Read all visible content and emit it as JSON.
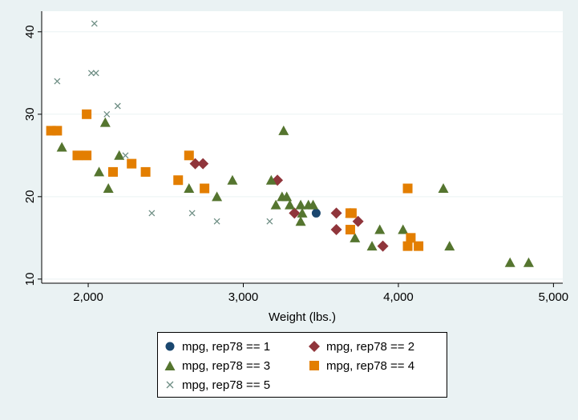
{
  "chart_data": {
    "type": "scatter",
    "title": "",
    "xlabel": "Weight (lbs.)",
    "ylabel": "",
    "xlim": [
      1700,
      5060
    ],
    "ylim": [
      9.5,
      42.5
    ],
    "xticks": [
      2000,
      3000,
      4000,
      5000
    ],
    "xtick_labels": [
      "2,000",
      "3,000",
      "4,000",
      "5,000"
    ],
    "yticks": [
      10,
      20,
      30,
      40
    ],
    "ytick_labels": [
      "10",
      "20",
      "30",
      "40"
    ],
    "grid": "horizontal",
    "legend_position": "bottom",
    "series": [
      {
        "name": "mpg, rep78 == 1",
        "marker": "circle",
        "color": "#1a476f",
        "points": [
          [
            3470,
            18
          ]
        ]
      },
      {
        "name": "mpg, rep78 == 2",
        "marker": "diamond",
        "color": "#90353b",
        "points": [
          [
            2690,
            24
          ],
          [
            2740,
            24
          ],
          [
            3220,
            22
          ],
          [
            3330,
            18
          ],
          [
            3600,
            18
          ],
          [
            3600,
            16
          ],
          [
            3740,
            17
          ],
          [
            3900,
            14
          ]
        ]
      },
      {
        "name": "mpg, rep78 == 3",
        "marker": "triangle",
        "color": "#55752f",
        "points": [
          [
            1830,
            26
          ],
          [
            2070,
            23
          ],
          [
            2110,
            29
          ],
          [
            2130,
            21
          ],
          [
            2200,
            25
          ],
          [
            2650,
            21
          ],
          [
            2830,
            20
          ],
          [
            2930,
            22
          ],
          [
            3180,
            22
          ],
          [
            3210,
            19
          ],
          [
            3260,
            28
          ],
          [
            3250,
            20
          ],
          [
            3280,
            20
          ],
          [
            3300,
            19
          ],
          [
            3370,
            17
          ],
          [
            3380,
            18
          ],
          [
            3370,
            19
          ],
          [
            3420,
            19
          ],
          [
            3450,
            19
          ],
          [
            3690,
            18
          ],
          [
            3720,
            15
          ],
          [
            3830,
            14
          ],
          [
            3880,
            16
          ],
          [
            4030,
            16
          ],
          [
            4290,
            21
          ],
          [
            4330,
            14
          ],
          [
            4720,
            12
          ],
          [
            4840,
            12
          ]
        ]
      },
      {
        "name": "mpg, rep78 == 4",
        "marker": "square",
        "color": "#e37e00",
        "points": [
          [
            1760,
            28
          ],
          [
            1800,
            28
          ],
          [
            1930,
            25
          ],
          [
            1990,
            30
          ],
          [
            1990,
            25
          ],
          [
            2160,
            23
          ],
          [
            2280,
            24
          ],
          [
            2370,
            23
          ],
          [
            2580,
            22
          ],
          [
            2650,
            25
          ],
          [
            2750,
            21
          ],
          [
            3690,
            16
          ],
          [
            3690,
            18
          ],
          [
            3700,
            18
          ],
          [
            4060,
            21
          ],
          [
            4060,
            14
          ],
          [
            4080,
            15
          ],
          [
            4130,
            14
          ]
        ]
      },
      {
        "name": "mpg, rep78 == 5",
        "marker": "x",
        "color": "#6e8e84",
        "points": [
          [
            1800,
            34
          ],
          [
            2020,
            35
          ],
          [
            2040,
            41
          ],
          [
            2050,
            35
          ],
          [
            2120,
            30
          ],
          [
            2190,
            31
          ],
          [
            2240,
            25
          ],
          [
            2410,
            18
          ],
          [
            2670,
            18
          ],
          [
            2830,
            17
          ],
          [
            3170,
            17
          ]
        ]
      }
    ]
  }
}
